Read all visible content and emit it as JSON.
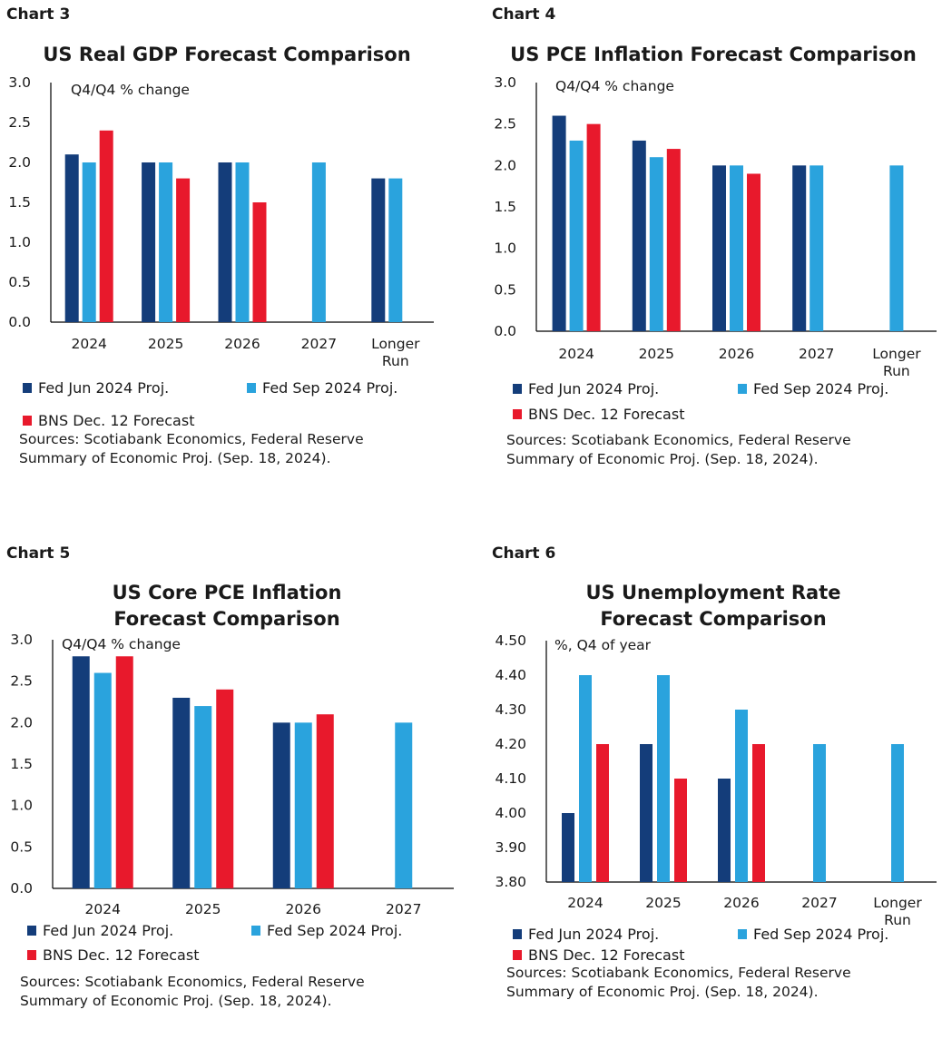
{
  "colors": {
    "fed_jun": "#143d7a",
    "fed_sep": "#2aa3dd",
    "bns": "#e8192c",
    "axis": "#000000"
  },
  "chart_data": [
    {
      "type": "bar",
      "chart_label": "Chart 3",
      "title": [
        "US Real GDP Forecast Comparison"
      ],
      "unit_label": "Q4/Q4 % change",
      "categories": [
        [
          "2024"
        ],
        [
          "2025"
        ],
        [
          "2026"
        ],
        [
          "2027"
        ],
        [
          "Longer",
          "Run"
        ]
      ],
      "ylim": [
        0,
        3.0
      ],
      "y_ticks": [
        "0.0",
        "0.5",
        "1.0",
        "1.5",
        "2.0",
        "2.5",
        "3.0"
      ],
      "tick_values": [
        0,
        0.5,
        1.0,
        1.5,
        2.0,
        2.5,
        3.0
      ],
      "series": [
        {
          "name": "Fed Jun 2024 Proj.",
          "color_key": "fed_jun",
          "values": [
            2.1,
            2.0,
            2.0,
            null,
            1.8
          ]
        },
        {
          "name": "Fed Sep 2024 Proj.",
          "color_key": "fed_sep",
          "values": [
            2.0,
            2.0,
            2.0,
            2.0,
            1.8
          ]
        },
        {
          "name": "BNS Dec. 12 Forecast",
          "color_key": "bns",
          "values": [
            2.4,
            1.8,
            1.5,
            null,
            null
          ]
        }
      ],
      "source": [
        "Sources: Scotiabank Economics, Federal Reserve",
        "Summary of Economic Proj. (Sep. 18, 2024)."
      ]
    },
    {
      "type": "bar",
      "chart_label": "Chart 4",
      "title": [
        "US PCE Inflation Forecast Comparison"
      ],
      "unit_label": "Q4/Q4 % change",
      "categories": [
        [
          "2024"
        ],
        [
          "2025"
        ],
        [
          "2026"
        ],
        [
          "2027"
        ],
        [
          "Longer",
          "Run"
        ]
      ],
      "ylim": [
        0,
        3.0
      ],
      "y_ticks": [
        "0.0",
        "0.5",
        "1.0",
        "1.5",
        "2.0",
        "2.5",
        "3.0"
      ],
      "tick_values": [
        0,
        0.5,
        1.0,
        1.5,
        2.0,
        2.5,
        3.0
      ],
      "series": [
        {
          "name": "Fed Jun 2024 Proj.",
          "color_key": "fed_jun",
          "values": [
            2.6,
            2.3,
            2.0,
            2.0,
            null
          ]
        },
        {
          "name": "Fed Sep 2024 Proj.",
          "color_key": "fed_sep",
          "values": [
            2.3,
            2.1,
            2.0,
            2.0,
            2.0
          ]
        },
        {
          "name": "BNS Dec. 12 Forecast",
          "color_key": "bns",
          "values": [
            2.5,
            2.2,
            1.9,
            null,
            null
          ]
        }
      ],
      "source": [
        "Sources: Scotiabank Economics, Federal Reserve",
        "Summary of Economic Proj. (Sep. 18, 2024)."
      ]
    },
    {
      "type": "bar",
      "chart_label": "Chart 5",
      "title": [
        "US Core PCE Inflation",
        "Forecast Comparison"
      ],
      "unit_label": "Q4/Q4 % change",
      "categories": [
        [
          "2024"
        ],
        [
          "2025"
        ],
        [
          "2026"
        ],
        [
          "2027"
        ]
      ],
      "ylim": [
        0,
        3.0
      ],
      "y_ticks": [
        "0.0",
        "0.5",
        "1.0",
        "1.5",
        "2.0",
        "2.5",
        "3.0"
      ],
      "tick_values": [
        0,
        0.5,
        1.0,
        1.5,
        2.0,
        2.5,
        3.0
      ],
      "series": [
        {
          "name": "Fed Jun 2024 Proj.",
          "color_key": "fed_jun",
          "values": [
            2.8,
            2.3,
            2.0,
            null
          ]
        },
        {
          "name": "Fed Sep 2024 Proj.",
          "color_key": "fed_sep",
          "values": [
            2.6,
            2.2,
            2.0,
            2.0
          ]
        },
        {
          "name": "BNS Dec. 12 Forecast",
          "color_key": "bns",
          "values": [
            2.8,
            2.4,
            2.1,
            null
          ]
        }
      ],
      "source": [
        "Sources: Scotiabank Economics, Federal Reserve",
        "Summary of Economic Proj. (Sep. 18, 2024)."
      ]
    },
    {
      "type": "bar",
      "chart_label": "Chart 6",
      "title": [
        "US Unemployment Rate",
        "Forecast Comparison"
      ],
      "unit_label": "%, Q4 of year",
      "categories": [
        [
          "2024"
        ],
        [
          "2025"
        ],
        [
          "2026"
        ],
        [
          "2027"
        ],
        [
          "Longer",
          "Run"
        ]
      ],
      "ylim": [
        3.8,
        4.5
      ],
      "y_ticks": [
        "3.80",
        "3.90",
        "4.00",
        "4.10",
        "4.20",
        "4.30",
        "4.40",
        "4.50"
      ],
      "tick_values": [
        3.8,
        3.9,
        4.0,
        4.1,
        4.2,
        4.3,
        4.4,
        4.5
      ],
      "series": [
        {
          "name": "Fed Jun 2024 Proj.",
          "color_key": "fed_jun",
          "values": [
            4.0,
            4.2,
            4.1,
            null,
            null
          ]
        },
        {
          "name": "Fed Sep 2024 Proj.",
          "color_key": "fed_sep",
          "values": [
            4.4,
            4.4,
            4.3,
            4.2,
            4.2
          ]
        },
        {
          "name": "BNS Dec. 12 Forecast",
          "color_key": "bns",
          "values": [
            4.2,
            4.1,
            4.2,
            null,
            null
          ]
        }
      ],
      "source": [
        "Sources: Scotiabank Economics, Federal Reserve",
        "Summary of Economic Proj. (Sep. 18, 2024)."
      ]
    }
  ]
}
